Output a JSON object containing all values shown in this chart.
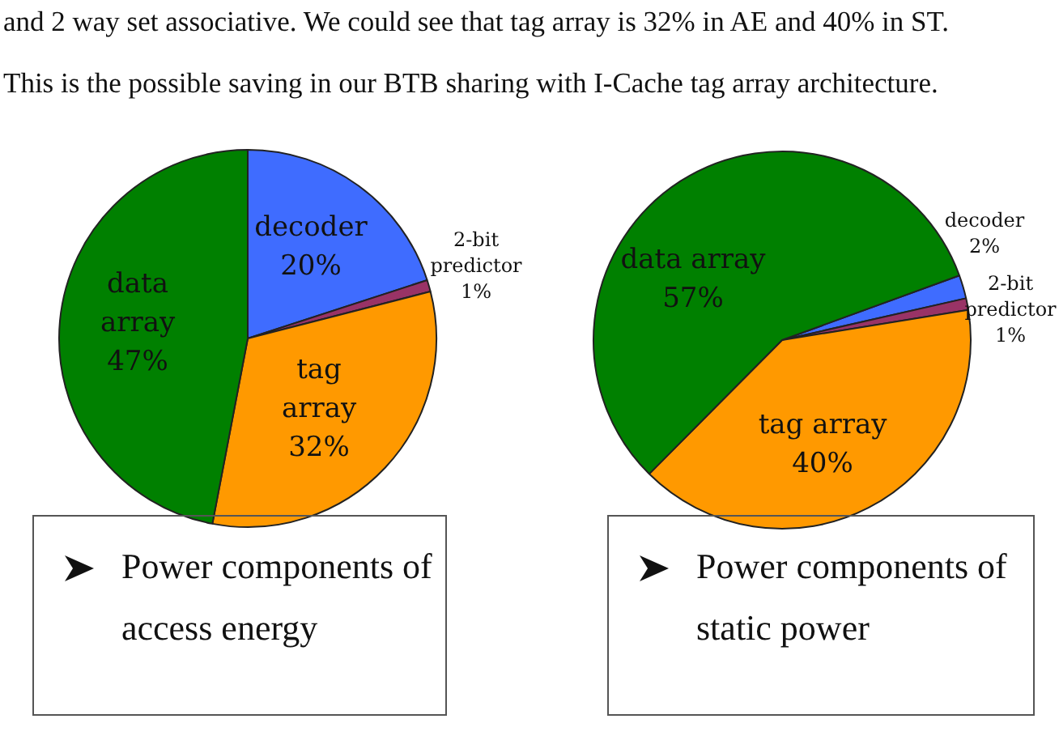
{
  "chart_data": [
    {
      "type": "pie",
      "title": "Power components of access energy",
      "annotations": [
        "and 2 way set associative. We could see that tag array is 32% in AE and 40% in ST.",
        "This is the possible saving in our BTB sharing with I-Cache tag array architecture."
      ],
      "categories": [
        "decoder",
        "2-bit predictor",
        "tag array",
        "data array"
      ],
      "values": [
        20,
        1,
        32,
        47
      ],
      "value_labels": [
        "20%",
        "1%",
        "32%",
        "47%"
      ],
      "colors": [
        "#3f6cff",
        "#993366",
        "#ff9900",
        "#008000"
      ]
    },
    {
      "type": "pie",
      "title": "Power components of static power",
      "categories": [
        "decoder",
        "2-bit predictor",
        "tag array",
        "data array"
      ],
      "values": [
        2,
        1,
        40,
        57
      ],
      "value_labels": [
        "2%",
        "1%",
        "40%",
        "57%"
      ],
      "colors": [
        "#3f6cff",
        "#993366",
        "#ff9900",
        "#008000"
      ]
    }
  ]
}
